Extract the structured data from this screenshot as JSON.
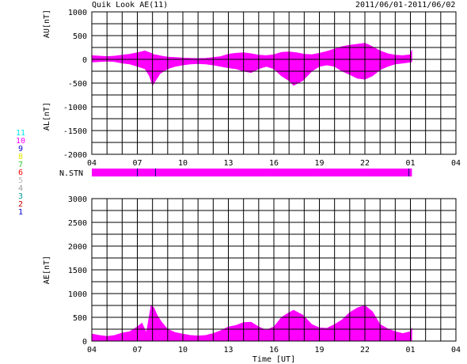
{
  "header": {
    "title": "Quik Look AE(11)",
    "date_range": "2011/06/01-2011/06/02"
  },
  "legend": {
    "stations": [
      {
        "label": "11",
        "color": "#00e5e5"
      },
      {
        "label": "10",
        "color": "#ff00ff"
      },
      {
        "label": "9",
        "color": "#0000cc"
      },
      {
        "label": "8",
        "color": "#e5e500"
      },
      {
        "label": "7",
        "color": "#33cc33"
      },
      {
        "label": "6",
        "color": "#ff0000"
      },
      {
        "label": "5",
        "color": "#bbbbbb"
      },
      {
        "label": "4",
        "color": "#999999"
      },
      {
        "label": "3",
        "color": "#009999"
      },
      {
        "label": "2",
        "color": "#cc0000"
      },
      {
        "label": "1",
        "color": "#0000cc"
      }
    ]
  },
  "colors": {
    "fill": "#ff00ff",
    "grid": "#000000",
    "marker": "#000080"
  },
  "chart_data": [
    {
      "type": "area",
      "name": "au-al",
      "xlabel": "",
      "ylabel_upper": "AU[nT]",
      "ylabel_lower": "AL[nT]",
      "ylim": [
        -2000,
        1000
      ],
      "yticks": [
        "1000",
        "500",
        "0",
        "-500",
        "-1000",
        "-1500",
        "-2000"
      ],
      "yticks_values": [
        1000,
        500,
        0,
        -500,
        -1000,
        -1500,
        -2000
      ],
      "xlim": [
        4,
        28
      ],
      "xticks": [
        "04",
        "07",
        "10",
        "13",
        "16",
        "19",
        "22",
        "01",
        "04"
      ],
      "xticks_values": [
        4,
        7,
        10,
        13,
        16,
        19,
        22,
        25,
        28
      ],
      "grid": true,
      "data_end_hour": 25.1,
      "au": {
        "x": [
          4.0,
          4.5,
          5.0,
          5.5,
          6.0,
          6.5,
          7.0,
          7.5,
          7.9,
          8.1,
          8.3,
          8.6,
          9.0,
          9.5,
          10.0,
          10.5,
          11.0,
          11.5,
          12.0,
          12.5,
          13.0,
          13.5,
          14.0,
          14.5,
          15.0,
          15.5,
          16.0,
          16.5,
          17.0,
          17.5,
          18.0,
          18.5,
          19.0,
          19.5,
          20.0,
          20.5,
          21.0,
          21.5,
          22.0,
          22.3,
          22.6,
          23.0,
          23.5,
          24.0,
          24.5,
          25.0,
          25.1
        ],
        "y": [
          80,
          70,
          60,
          70,
          90,
          110,
          140,
          180,
          130,
          100,
          90,
          70,
          50,
          40,
          30,
          25,
          20,
          25,
          40,
          60,
          110,
          130,
          140,
          120,
          90,
          80,
          100,
          150,
          160,
          140,
          110,
          100,
          130,
          170,
          220,
          270,
          300,
          320,
          340,
          300,
          250,
          180,
          120,
          90,
          80,
          100,
          200
        ]
      },
      "al": {
        "x": [
          4.0,
          4.5,
          5.0,
          5.5,
          6.0,
          6.5,
          7.0,
          7.5,
          7.8,
          8.0,
          8.2,
          8.5,
          9.0,
          9.5,
          10.0,
          10.5,
          11.0,
          11.5,
          12.0,
          12.5,
          13.0,
          13.5,
          14.0,
          14.5,
          15.0,
          15.5,
          16.0,
          16.5,
          17.0,
          17.3,
          17.6,
          17.9,
          18.2,
          18.5,
          19.0,
          19.5,
          20.0,
          20.5,
          21.0,
          21.5,
          22.0,
          22.5,
          23.0,
          23.5,
          24.0,
          24.5,
          25.0,
          25.1
        ],
        "y": [
          -60,
          -50,
          -40,
          -50,
          -80,
          -100,
          -150,
          -200,
          -350,
          -550,
          -450,
          -300,
          -200,
          -150,
          -120,
          -100,
          -90,
          -100,
          -120,
          -150,
          -180,
          -200,
          -250,
          -280,
          -200,
          -150,
          -200,
          -350,
          -450,
          -550,
          -500,
          -450,
          -350,
          -250,
          -150,
          -120,
          -150,
          -250,
          -320,
          -400,
          -420,
          -350,
          -220,
          -150,
          -100,
          -80,
          -60,
          -50
        ]
      }
    },
    {
      "type": "bar",
      "name": "n-stn",
      "label": "N.STN",
      "value": 11,
      "data_end_hour": 25.1,
      "station_change_hours": [
        7.0,
        8.2,
        24.9
      ]
    },
    {
      "type": "area",
      "name": "ae",
      "xlabel": "Time [UT]",
      "ylabel": "AE[nT]",
      "ylim": [
        0,
        3000
      ],
      "yticks": [
        "3000",
        "2500",
        "2000",
        "1500",
        "1000",
        "500",
        "0"
      ],
      "yticks_values": [
        3000,
        2500,
        2000,
        1500,
        1000,
        500,
        0
      ],
      "xlim": [
        4,
        28
      ],
      "xticks": [
        "04",
        "07",
        "10",
        "13",
        "16",
        "19",
        "22",
        "01",
        "04"
      ],
      "xticks_values": [
        4,
        7,
        10,
        13,
        16,
        19,
        22,
        25,
        28
      ],
      "grid": true,
      "data_end_hour": 25.1,
      "x": [
        4.0,
        4.5,
        5.0,
        5.5,
        6.0,
        6.5,
        7.0,
        7.3,
        7.6,
        7.9,
        8.1,
        8.3,
        8.6,
        9.0,
        9.5,
        10.0,
        10.5,
        11.0,
        11.5,
        12.0,
        12.5,
        13.0,
        13.5,
        14.0,
        14.5,
        15.0,
        15.5,
        16.0,
        16.5,
        17.0,
        17.3,
        17.6,
        17.9,
        18.2,
        18.5,
        19.0,
        19.5,
        20.0,
        20.5,
        21.0,
        21.5,
        22.0,
        22.5,
        23.0,
        23.5,
        24.0,
        24.5,
        25.0,
        25.1
      ],
      "y": [
        150,
        120,
        100,
        120,
        170,
        200,
        300,
        380,
        180,
        750,
        700,
        550,
        400,
        250,
        180,
        150,
        120,
        110,
        120,
        160,
        220,
        300,
        330,
        390,
        400,
        300,
        230,
        300,
        500,
        600,
        650,
        600,
        550,
        450,
        350,
        280,
        270,
        350,
        450,
        600,
        700,
        750,
        620,
        350,
        260,
        200,
        160,
        200,
        280
      ]
    }
  ]
}
